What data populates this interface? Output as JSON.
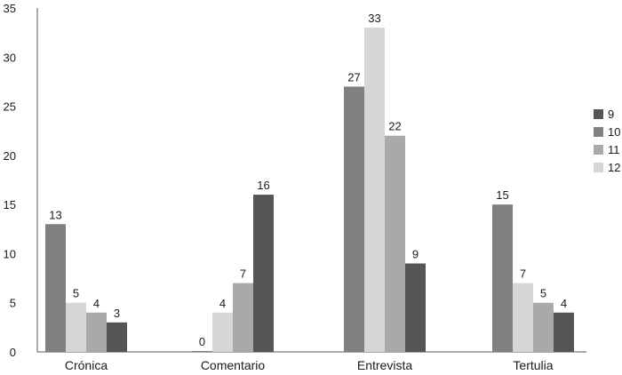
{
  "chart_data": {
    "type": "bar",
    "categories": [
      "Crónica",
      "Comentario",
      "Entrevista",
      "Tertulia"
    ],
    "series": [
      {
        "name": "10",
        "color": "#808080",
        "values": [
          13,
          0,
          27,
          15
        ]
      },
      {
        "name": "12",
        "color": "#d6d6d6",
        "values": [
          5,
          4,
          33,
          7
        ]
      },
      {
        "name": "11",
        "color": "#a9a9a9",
        "values": [
          4,
          7,
          22,
          5
        ]
      },
      {
        "name": "9",
        "color": "#555555",
        "values": [
          3,
          16,
          9,
          4
        ]
      }
    ],
    "legend_order": [
      "9",
      "10",
      "11",
      "12"
    ],
    "ylim": [
      0,
      35
    ],
    "yticks": [
      "0",
      "5",
      "10",
      "15",
      "20",
      "25",
      "30",
      "35"
    ],
    "grid": false,
    "legend_position": "right",
    "title": "",
    "xlabel": "",
    "ylabel": ""
  }
}
